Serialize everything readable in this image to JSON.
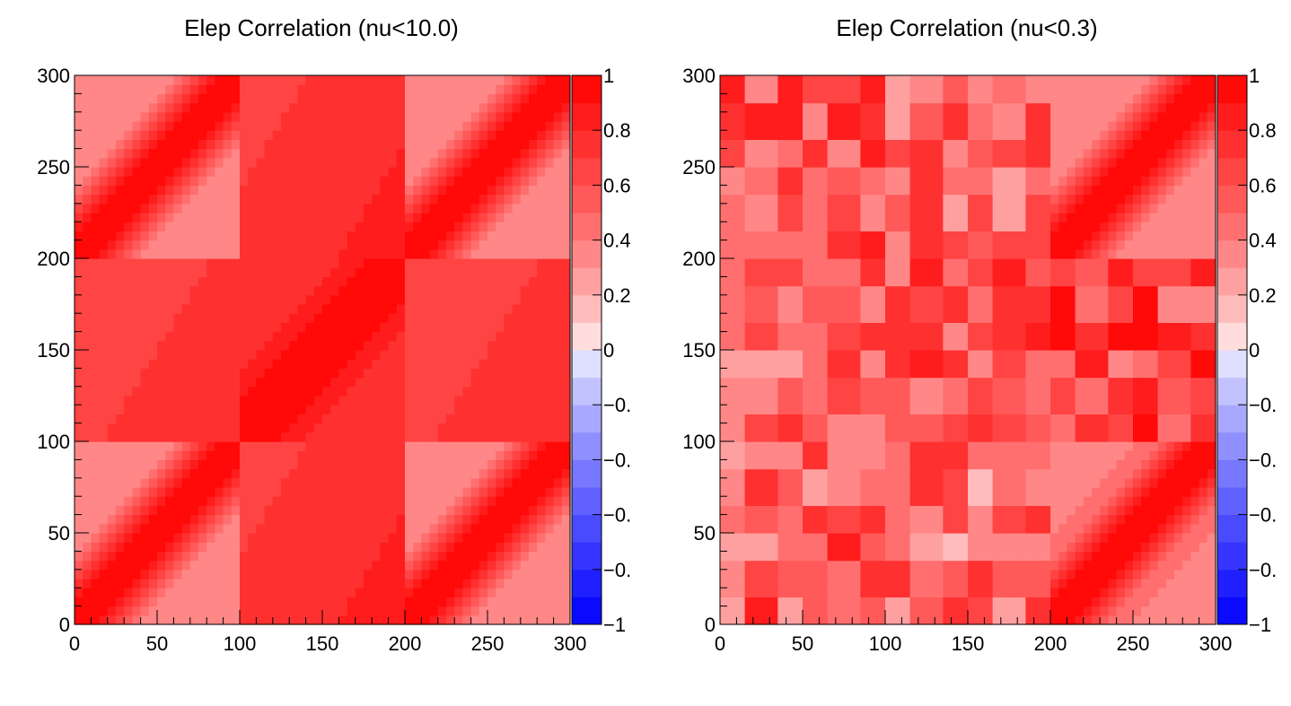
{
  "figure": {
    "background": "#ffffff",
    "colorscale": {
      "levels": 20,
      "min": -1,
      "max": 1,
      "negative_color": "#0000ff",
      "neutral_color": "#ffffff",
      "positive_color": "#ff0000"
    }
  },
  "chart_data": [
    {
      "type": "heatmap",
      "title": "Elep Correlation (nu<10.0)",
      "xlim": [
        0,
        300
      ],
      "ylim": [
        0,
        300
      ],
      "zlim": [
        -1,
        1
      ],
      "x_ticks": [
        "0",
        "50",
        "100",
        "150",
        "200",
        "250",
        "300"
      ],
      "y_ticks": [
        "0",
        "50",
        "100",
        "150",
        "200",
        "250",
        "300"
      ],
      "z_ticks": [
        "1",
        "0.8",
        "0.6",
        "0.4",
        "0.2",
        "0",
        "−0.",
        "−0.",
        "−0.",
        "−0.",
        "−1"
      ],
      "grid": false,
      "blocks": [
        {
          "x": [
            0,
            100
          ],
          "y": [
            0,
            100
          ],
          "kind": "diag",
          "offdiag": 0.3
        },
        {
          "x": [
            100,
            200
          ],
          "y": [
            0,
            100
          ],
          "kind": "uniform",
          "value": 0.75
        },
        {
          "x": [
            200,
            300
          ],
          "y": [
            0,
            100
          ],
          "kind": "diag",
          "offdiag": 0.3
        },
        {
          "x": [
            0,
            100
          ],
          "y": [
            100,
            200
          ],
          "kind": "uniform",
          "value": 0.7
        },
        {
          "x": [
            100,
            200
          ],
          "y": [
            100,
            200
          ],
          "kind": "diag",
          "offdiag": 0.75
        },
        {
          "x": [
            200,
            300
          ],
          "y": [
            100,
            200
          ],
          "kind": "uniform",
          "value": 0.7
        },
        {
          "x": [
            0,
            100
          ],
          "y": [
            200,
            300
          ],
          "kind": "diag",
          "offdiag": 0.3
        },
        {
          "x": [
            100,
            200
          ],
          "y": [
            200,
            300
          ],
          "kind": "uniform",
          "value": 0.75
        },
        {
          "x": [
            200,
            300
          ],
          "y": [
            200,
            300
          ],
          "kind": "diag",
          "offdiag": 0.3
        }
      ]
    },
    {
      "type": "heatmap",
      "title": "Elep Correlation (nu<0.3)",
      "xlim": [
        0,
        300
      ],
      "ylim": [
        0,
        300
      ],
      "zlim": [
        -1,
        1
      ],
      "x_ticks": [
        "0",
        "50",
        "100",
        "150",
        "200",
        "250",
        "300"
      ],
      "y_ticks": [
        "0",
        "50",
        "100",
        "150",
        "200",
        "250",
        "300"
      ],
      "z_ticks": [
        "1",
        "0.8",
        "0.6",
        "0.4",
        "0.2",
        "0",
        "−0.",
        "−0.",
        "−0.",
        "−0.",
        "−1"
      ],
      "grid": false,
      "blocks": [
        {
          "x": [
            0,
            100
          ],
          "y": [
            0,
            100
          ],
          "kind": "patchy",
          "value": 0.55
        },
        {
          "x": [
            100,
            200
          ],
          "y": [
            0,
            100
          ],
          "kind": "patchy",
          "value": 0.45
        },
        {
          "x": [
            200,
            300
          ],
          "y": [
            0,
            100
          ],
          "kind": "diag",
          "offdiag": 0.35
        },
        {
          "x": [
            0,
            100
          ],
          "y": [
            100,
            200
          ],
          "kind": "patchy",
          "value": 0.5
        },
        {
          "x": [
            100,
            200
          ],
          "y": [
            100,
            200
          ],
          "kind": "patchy",
          "value": 0.6
        },
        {
          "x": [
            200,
            300
          ],
          "y": [
            100,
            200
          ],
          "kind": "patchy",
          "value": 0.65
        },
        {
          "x": [
            0,
            100
          ],
          "y": [
            200,
            300
          ],
          "kind": "patchy",
          "value": 0.6
        },
        {
          "x": [
            100,
            200
          ],
          "y": [
            200,
            300
          ],
          "kind": "patchy",
          "value": 0.5
        },
        {
          "x": [
            200,
            300
          ],
          "y": [
            200,
            300
          ],
          "kind": "diag",
          "offdiag": 0.3
        }
      ]
    }
  ]
}
